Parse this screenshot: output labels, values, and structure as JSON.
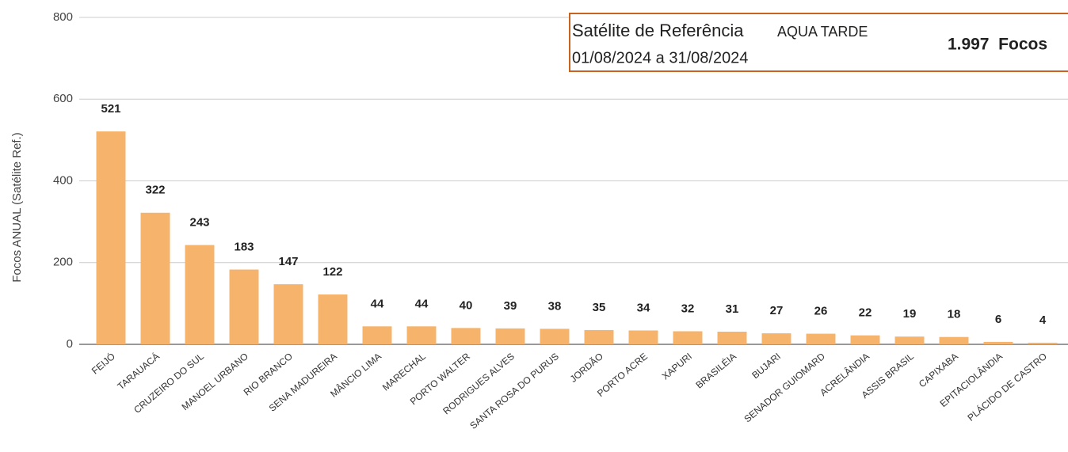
{
  "chart_data": {
    "type": "bar",
    "y_label": "Focos ANUAL (Satélite Ref.)",
    "categories": [
      "FEIJÓ",
      "TARAUACÁ",
      "CRUZEIRO DO SUL",
      "MANOEL URBANO",
      "RIO BRANCO",
      "SENA MADUREIRA",
      "MÂNCIO LIMA",
      "MARECHAL",
      "PORTO WALTER",
      "RODRIGUES ALVES",
      "SANTA ROSA DO PURUS",
      "JORDÃO",
      "PORTO ACRE",
      "XAPURI",
      "BRASILÉIA",
      "BUJARI",
      "SENADOR GUIOMARD",
      "ACRELÂNDIA",
      "ASSIS BRASIL",
      "CAPIXABA",
      "EPITACIOLÂNDIA",
      "PLÁCIDO DE CASTRO"
    ],
    "values": [
      521,
      322,
      243,
      183,
      147,
      122,
      44,
      44,
      40,
      39,
      38,
      35,
      34,
      32,
      31,
      27,
      26,
      22,
      19,
      18,
      6,
      4
    ],
    "color": "#f5b36b",
    "ylim": [
      0,
      800
    ],
    "yticks": [
      0,
      200,
      400,
      600,
      800
    ],
    "grid": true,
    "annotation": {
      "line1": "Satélite de Referência",
      "satellite": "AQUA TARDE",
      "period": "01/08/2024 a 31/08/2024",
      "total": "1.997  Focos"
    }
  }
}
